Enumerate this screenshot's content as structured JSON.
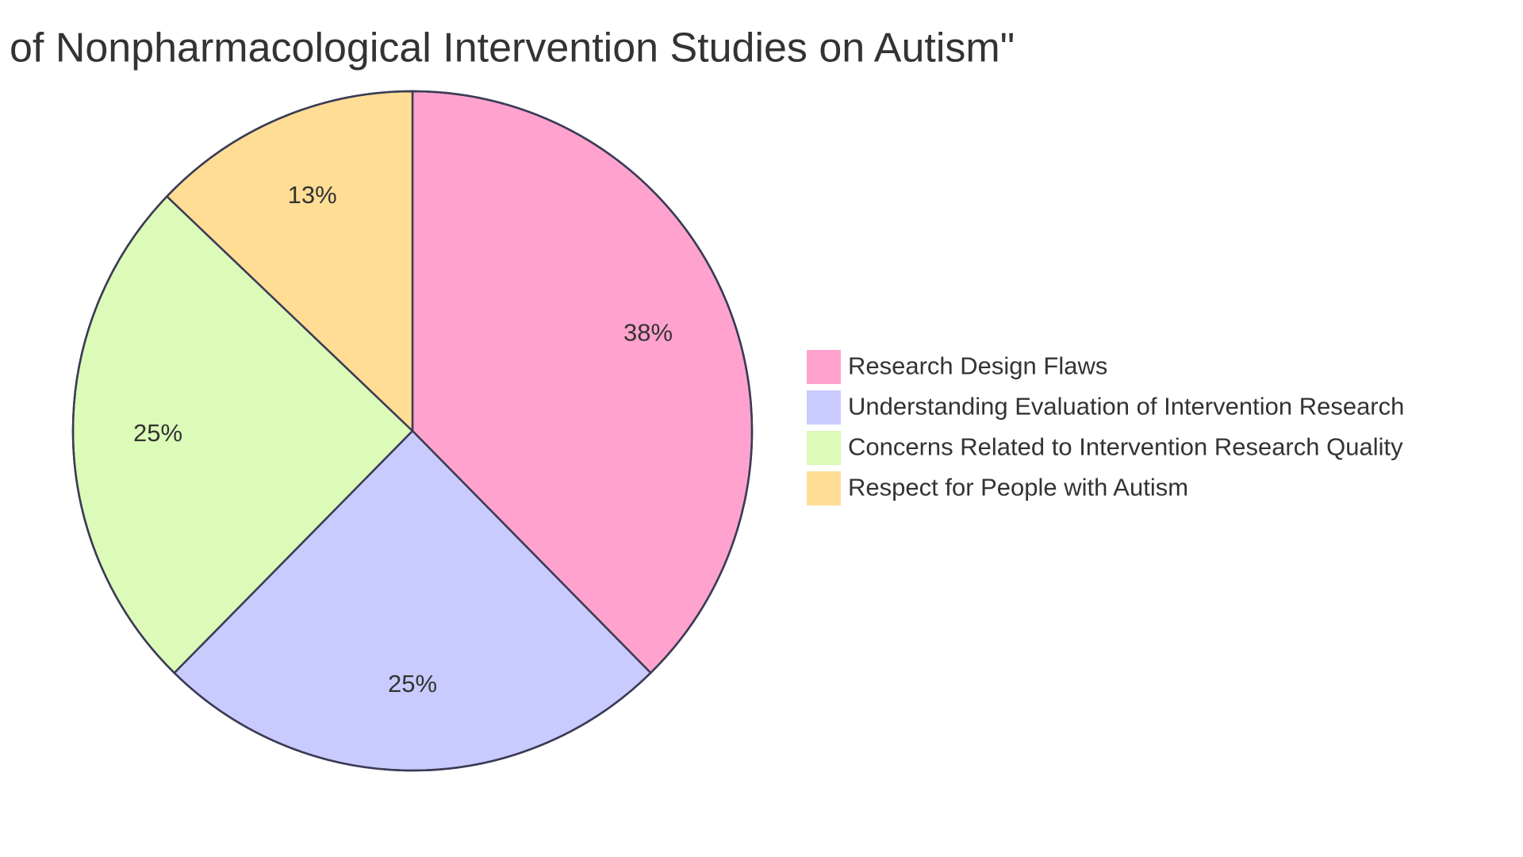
{
  "chart_data": {
    "type": "pie",
    "title": "of Nonpharmacological Intervention Studies on Autism\"",
    "categories": [
      "Research Design Flaws",
      "Understanding Evaluation of Intervention Research",
      "Concerns Related to Intervention Research Quality",
      "Respect for People with Autism"
    ],
    "values": [
      38,
      25,
      25,
      13
    ],
    "value_labels": [
      "38%",
      "25%",
      "25%",
      "13%"
    ],
    "colors": [
      "#ffa3ce",
      "#c9cbff",
      "#dcfab8",
      "#ffdd95"
    ],
    "legend": "right"
  }
}
